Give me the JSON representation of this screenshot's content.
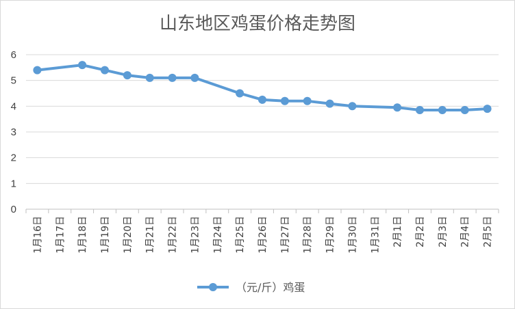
{
  "chart_data": {
    "type": "line",
    "title": "山东地区鸡蛋价格走势图",
    "xlabel": "",
    "ylabel": "",
    "ylim": [
      0,
      6
    ],
    "yticks": [
      "0",
      "1",
      "2",
      "3",
      "4",
      "5",
      "6"
    ],
    "grid": true,
    "legend_position": "bottom",
    "series_color": "#5b9bd5",
    "categories": [
      "1月16日",
      "1月17日",
      "1月18日",
      "1月19日",
      "1月20日",
      "1月21日",
      "1月22日",
      "1月23日",
      "1月24日",
      "1月25日",
      "1月26日",
      "1月27日",
      "1月28日",
      "1月29日",
      "1月30日",
      "1月31日",
      "2月1日",
      "2月2日",
      "2月3日",
      "2月4日",
      "2月5日"
    ],
    "series": [
      {
        "name": "（元/斤）鸡蛋",
        "values": [
          5.4,
          null,
          5.6,
          5.4,
          5.2,
          5.1,
          5.1,
          5.1,
          null,
          4.5,
          4.25,
          4.2,
          4.2,
          4.1,
          4.0,
          null,
          3.95,
          3.85,
          3.85,
          3.85,
          3.9
        ]
      }
    ]
  }
}
